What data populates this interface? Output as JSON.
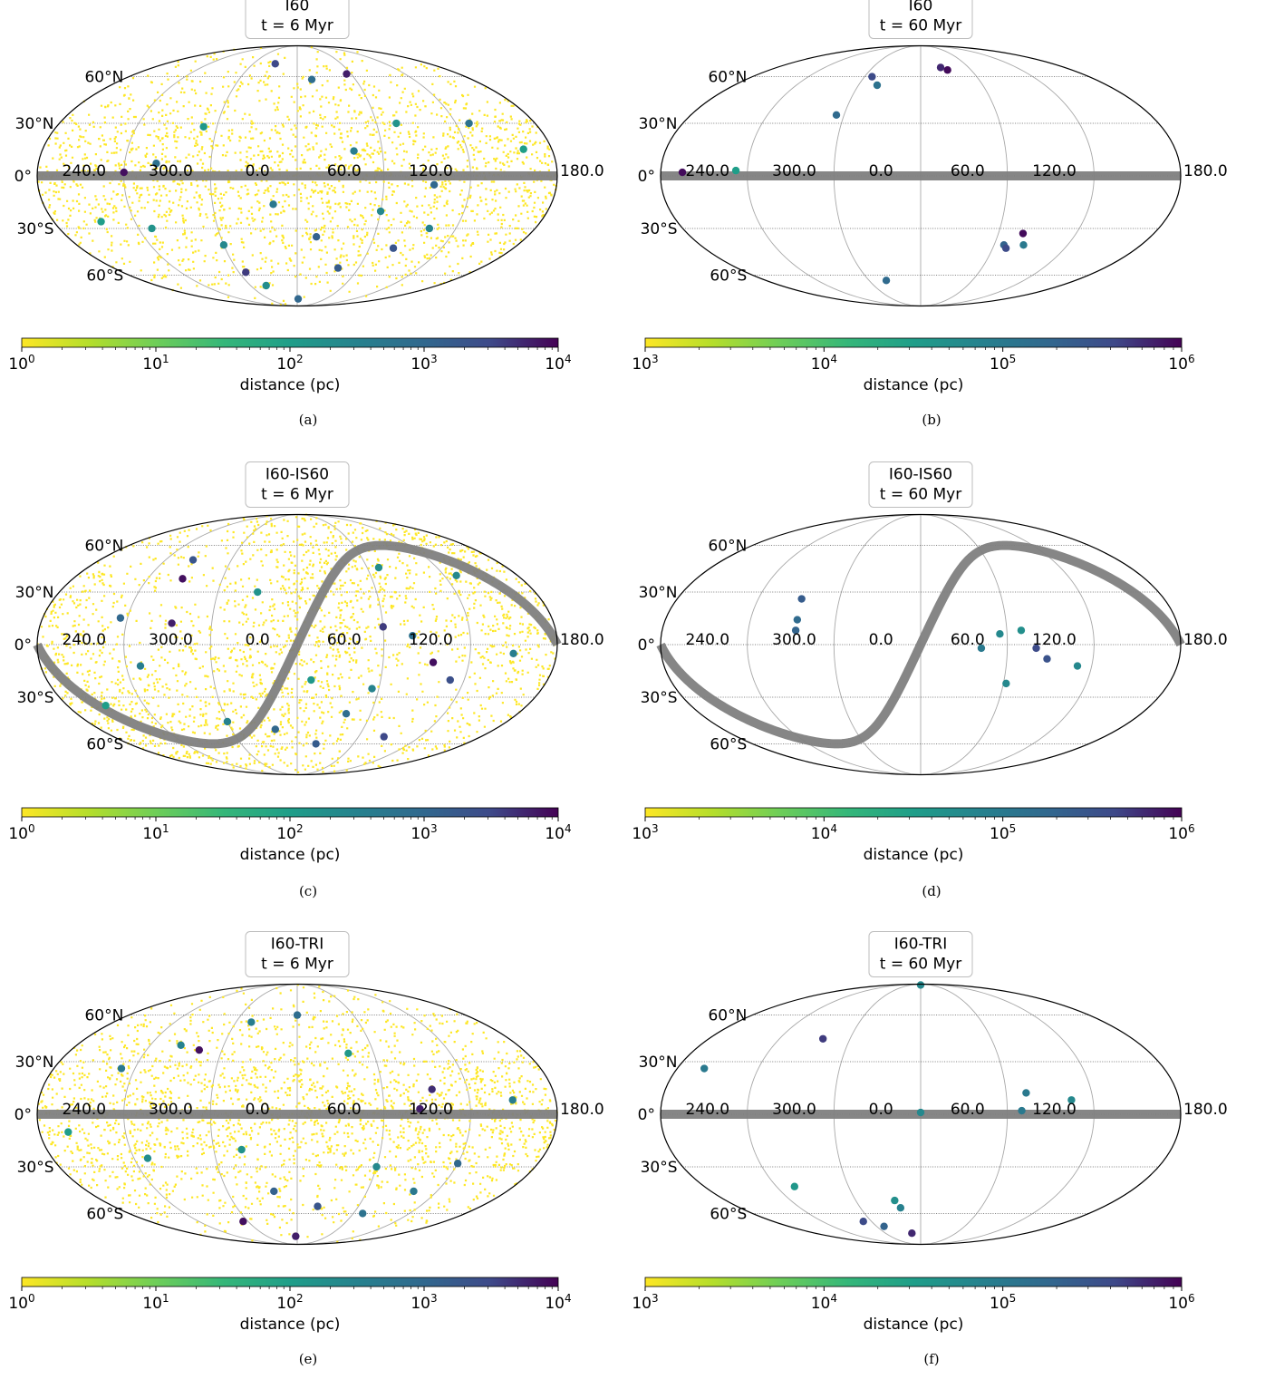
{
  "chart_data": [
    {
      "panel": "(a)",
      "type": "scatter",
      "projection": "mollweide",
      "title": "I60",
      "subtitle": "t = 6 Myr",
      "lon_tick_labels": [
        "240.0",
        "300.0",
        "0.0",
        "60.0",
        "120.0",
        "180.0"
      ],
      "lat_tick_labels": [
        "60°N",
        "30°N",
        "0°",
        "30°S",
        "60°S"
      ],
      "plane_line": {
        "tilt_deg": 0
      },
      "grid": true,
      "colorbar": {
        "label": "distance (pc)",
        "min_exp": 0,
        "max_exp": 4,
        "tick_labels": [
          "10^0",
          "10^1",
          "10^2",
          "10^3",
          "10^4"
        ],
        "colormap": "viridis_r"
      },
      "background_dots": {
        "color": "#fde725",
        "approx_count": 2200,
        "note": "dense yellow cloud of nearby sources"
      },
      "points": [
        {
          "lon": 240,
          "lat": 2,
          "d_exp": 3.9
        },
        {
          "lon": 262,
          "lat": 7,
          "d_exp": 2.8
        },
        {
          "lon": 300,
          "lat": -40,
          "d_exp": 2.4
        },
        {
          "lon": 307,
          "lat": -58,
          "d_exp": 3.6
        },
        {
          "lon": 343,
          "lat": -16,
          "d_exp": 2.7
        },
        {
          "lon": 2,
          "lat": -80,
          "d_exp": 3.0
        },
        {
          "lon": 40,
          "lat": -55,
          "d_exp": 3.2
        },
        {
          "lon": 80,
          "lat": -42,
          "d_exp": 3.3
        },
        {
          "lon": 100,
          "lat": -30,
          "d_exp": 2.5
        },
        {
          "lon": 55,
          "lat": 62,
          "d_exp": 3.8
        },
        {
          "lon": 15,
          "lat": 58,
          "d_exp": 2.9
        },
        {
          "lon": 330,
          "lat": 70,
          "d_exp": 3.5
        },
        {
          "lon": 40,
          "lat": 14,
          "d_exp": 2.6
        },
        {
          "lon": 75,
          "lat": 30,
          "d_exp": 2.2
        },
        {
          "lon": 130,
          "lat": 30,
          "d_exp": 2.8
        },
        {
          "lon": 215,
          "lat": -26,
          "d_exp": 2.0
        },
        {
          "lon": 290,
          "lat": 28,
          "d_exp": 2.1
        },
        {
          "lon": 320,
          "lat": -68,
          "d_exp": 2.3
        },
        {
          "lon": 60,
          "lat": -20,
          "d_exp": 2.4
        },
        {
          "lon": 15,
          "lat": -35,
          "d_exp": 3.1
        },
        {
          "lon": 250,
          "lat": -30,
          "d_exp": 2.2
        },
        {
          "lon": 160,
          "lat": 15,
          "d_exp": 2.0
        },
        {
          "lon": 95,
          "lat": -5,
          "d_exp": 3.0
        }
      ]
    },
    {
      "panel": "(b)",
      "type": "scatter",
      "projection": "mollweide",
      "title": "I60",
      "subtitle": "t = 60 Myr",
      "lon_tick_labels": [
        "240.0",
        "300.0",
        "0.0",
        "60.0",
        "120.0",
        "180.0"
      ],
      "lat_tick_labels": [
        "60°N",
        "30°N",
        "0°",
        "30°S",
        "60°S"
      ],
      "plane_line": {
        "tilt_deg": 0
      },
      "grid": true,
      "colorbar": {
        "label": "distance (pc)",
        "min_exp": 3,
        "max_exp": 6,
        "tick_labels": [
          "10^3",
          "10^4",
          "10^5",
          "10^6"
        ],
        "colormap": "viridis_r"
      },
      "points": [
        {
          "lon": 195,
          "lat": 2,
          "d_exp": 5.95
        },
        {
          "lon": 232,
          "lat": 3,
          "d_exp": 4.5
        },
        {
          "lon": 308,
          "lat": 60,
          "d_exp": 5.6
        },
        {
          "lon": 318,
          "lat": 54,
          "d_exp": 5.1
        },
        {
          "lon": 294,
          "lat": 35,
          "d_exp": 5.2
        },
        {
          "lon": 25,
          "lat": 67,
          "d_exp": 5.8
        },
        {
          "lon": 32,
          "lat": 65,
          "d_exp": 5.95
        },
        {
          "lon": 79,
          "lat": -33,
          "d_exp": 5.95
        },
        {
          "lon": 68,
          "lat": -40,
          "d_exp": 5.3
        },
        {
          "lon": 71,
          "lat": -42,
          "d_exp": 5.6
        },
        {
          "lon": 84,
          "lat": -40,
          "d_exp": 5.0
        },
        {
          "lon": 320,
          "lat": -64,
          "d_exp": 5.2
        }
      ]
    },
    {
      "panel": "(c)",
      "type": "scatter",
      "projection": "mollweide",
      "title": "I60-IS60",
      "subtitle": "t = 6 Myr",
      "lon_tick_labels": [
        "240.0",
        "300.0",
        "0.0",
        "60.0",
        "120.0",
        "180.0"
      ],
      "lat_tick_labels": [
        "60°N",
        "30°N",
        "0°",
        "30°S",
        "60°S"
      ],
      "plane_line": {
        "tilt_deg": 60
      },
      "grid": true,
      "colorbar": {
        "label": "distance (pc)",
        "min_exp": 0,
        "max_exp": 4,
        "tick_labels": [
          "10^0",
          "10^1",
          "10^2",
          "10^3",
          "10^4"
        ],
        "colormap": "viridis_r"
      },
      "background_dots": {
        "color": "#fde725",
        "approx_count": 2200,
        "note": "dense yellow cloud of nearby sources"
      },
      "points": [
        {
          "lon": 265,
          "lat": 50,
          "d_exp": 3.3
        },
        {
          "lon": 268,
          "lat": 38,
          "d_exp": 3.9
        },
        {
          "lon": 272,
          "lat": 12,
          "d_exp": 3.8
        },
        {
          "lon": 235,
          "lat": 15,
          "d_exp": 3.0
        },
        {
          "lon": 250,
          "lat": -12,
          "d_exp": 2.6
        },
        {
          "lon": 300,
          "lat": -45,
          "d_exp": 2.5
        },
        {
          "lon": 60,
          "lat": 10,
          "d_exp": 3.6
        },
        {
          "lon": 95,
          "lat": -10,
          "d_exp": 3.9
        },
        {
          "lon": 110,
          "lat": -20,
          "d_exp": 3.4
        },
        {
          "lon": 55,
          "lat": -25,
          "d_exp": 2.5
        },
        {
          "lon": 80,
          "lat": 5,
          "d_exp": 2.8
        },
        {
          "lon": 40,
          "lat": -40,
          "d_exp": 2.9
        },
        {
          "lon": 20,
          "lat": -60,
          "d_exp": 3.2
        },
        {
          "lon": 130,
          "lat": 40,
          "d_exp": 2.4
        },
        {
          "lon": 330,
          "lat": 30,
          "d_exp": 2.2
        },
        {
          "lon": 10,
          "lat": -20,
          "d_exp": 2.1
        },
        {
          "lon": 340,
          "lat": -50,
          "d_exp": 3.0
        },
        {
          "lon": 70,
          "lat": 45,
          "d_exp": 2.3
        },
        {
          "lon": 150,
          "lat": -5,
          "d_exp": 2.6
        },
        {
          "lon": 210,
          "lat": -35,
          "d_exp": 2.0
        },
        {
          "lon": 85,
          "lat": -55,
          "d_exp": 3.5
        }
      ]
    },
    {
      "panel": "(d)",
      "type": "scatter",
      "projection": "mollweide",
      "title": "I60-IS60",
      "subtitle": "t = 60 Myr",
      "lon_tick_labels": [
        "240.0",
        "300.0",
        "0.0",
        "60.0",
        "120.0",
        "180.0"
      ],
      "lat_tick_labels": [
        "60°N",
        "30°N",
        "0°",
        "30°S",
        "60°S"
      ],
      "plane_line": {
        "tilt_deg": 60
      },
      "grid": true,
      "colorbar": {
        "label": "distance (pc)",
        "min_exp": 3,
        "max_exp": 6,
        "tick_labels": [
          "10^3",
          "10^4",
          "10^5",
          "10^6"
        ],
        "colormap": "viridis_r"
      },
      "points": [
        {
          "lon": 272,
          "lat": 26,
          "d_exp": 5.4
        },
        {
          "lon": 273,
          "lat": 14,
          "d_exp": 5.2
        },
        {
          "lon": 273,
          "lat": 8,
          "d_exp": 5.3
        },
        {
          "lon": 42,
          "lat": -2,
          "d_exp": 5.0
        },
        {
          "lon": 55,
          "lat": 6,
          "d_exp": 4.8
        },
        {
          "lon": 70,
          "lat": 8,
          "d_exp": 4.7
        },
        {
          "lon": 80,
          "lat": -2,
          "d_exp": 5.6
        },
        {
          "lon": 88,
          "lat": -8,
          "d_exp": 5.5
        },
        {
          "lon": 110,
          "lat": -12,
          "d_exp": 4.8
        },
        {
          "lon": 62,
          "lat": -22,
          "d_exp": 4.8
        }
      ]
    },
    {
      "panel": "(e)",
      "type": "scatter",
      "projection": "mollweide",
      "title": "I60-TRI",
      "subtitle": "t = 6 Myr",
      "lon_tick_labels": [
        "240.0",
        "300.0",
        "0.0",
        "60.0",
        "120.0",
        "180.0"
      ],
      "lat_tick_labels": [
        "60°N",
        "30°N",
        "0°",
        "30°S",
        "60°S"
      ],
      "plane_line": {
        "tilt_deg": 0
      },
      "grid": true,
      "colorbar": {
        "label": "distance (pc)",
        "min_exp": 0,
        "max_exp": 4,
        "tick_labels": [
          "10^0",
          "10^1",
          "10^2",
          "10^3",
          "10^4"
        ],
        "colormap": "viridis_r"
      },
      "background_dots": {
        "color": "#fde725",
        "approx_count": 2200,
        "note": "dense yellow cloud of nearby sources"
      },
      "points": [
        {
          "lon": 282,
          "lat": 37,
          "d_exp": 3.9
        },
        {
          "lon": 95,
          "lat": 14,
          "d_exp": 3.7
        },
        {
          "lon": 85,
          "lat": 3,
          "d_exp": 3.8
        },
        {
          "lon": 294,
          "lat": -66,
          "d_exp": 3.9
        },
        {
          "lon": 357,
          "lat": -79,
          "d_exp": 3.8
        },
        {
          "lon": 230,
          "lat": 26,
          "d_exp": 2.7
        },
        {
          "lon": 265,
          "lat": 40,
          "d_exp": 2.5
        },
        {
          "lon": 315,
          "lat": 55,
          "d_exp": 2.6
        },
        {
          "lon": 60,
          "lat": -30,
          "d_exp": 2.4
        },
        {
          "lon": 20,
          "lat": -55,
          "d_exp": 3.3
        },
        {
          "lon": 70,
          "lat": -60,
          "d_exp": 2.8
        },
        {
          "lon": 120,
          "lat": -28,
          "d_exp": 3.0
        },
        {
          "lon": 320,
          "lat": -20,
          "d_exp": 2.2
        },
        {
          "lon": 250,
          "lat": -25,
          "d_exp": 2.3
        },
        {
          "lon": 40,
          "lat": 35,
          "d_exp": 2.1
        },
        {
          "lon": 150,
          "lat": 8,
          "d_exp": 2.6
        },
        {
          "lon": 0,
          "lat": 60,
          "d_exp": 2.9
        },
        {
          "lon": 340,
          "lat": -45,
          "d_exp": 3.1
        },
        {
          "lon": 200,
          "lat": -10,
          "d_exp": 2.0
        },
        {
          "lon": 100,
          "lat": -45,
          "d_exp": 2.7
        }
      ]
    },
    {
      "panel": "(f)",
      "type": "scatter",
      "projection": "mollweide",
      "title": "I60-TRI",
      "subtitle": "t = 60 Myr",
      "lon_tick_labels": [
        "240.0",
        "300.0",
        "0.0",
        "60.0",
        "120.0",
        "180.0"
      ],
      "lat_tick_labels": [
        "60°N",
        "30°N",
        "0°",
        "30°S",
        "60°S"
      ],
      "plane_line": {
        "tilt_deg": 0
      },
      "grid": true,
      "colorbar": {
        "label": "distance (pc)",
        "min_exp": 3,
        "max_exp": 6,
        "tick_labels": [
          "10^3",
          "10^4",
          "10^5",
          "10^6"
        ],
        "colormap": "viridis_r"
      },
      "points": [
        {
          "lon": 0,
          "lat": 88,
          "d_exp": 4.8
        },
        {
          "lon": 277,
          "lat": 44,
          "d_exp": 5.7
        },
        {
          "lon": 200,
          "lat": 26,
          "d_exp": 5.0
        },
        {
          "lon": 74,
          "lat": 12,
          "d_exp": 5.0
        },
        {
          "lon": 70,
          "lat": 2,
          "d_exp": 5.0
        },
        {
          "lon": 105,
          "lat": 8,
          "d_exp": 4.8
        },
        {
          "lon": 0,
          "lat": 1,
          "d_exp": 4.8
        },
        {
          "lon": 255,
          "lat": -42,
          "d_exp": 4.6
        },
        {
          "lon": 336,
          "lat": -51,
          "d_exp": 4.7
        },
        {
          "lon": 340,
          "lat": -56,
          "d_exp": 4.9
        },
        {
          "lon": 290,
          "lat": -66,
          "d_exp": 5.6
        },
        {
          "lon": 310,
          "lat": -70,
          "d_exp": 5.3
        },
        {
          "lon": 345,
          "lat": -76,
          "d_exp": 5.8
        }
      ]
    }
  ]
}
